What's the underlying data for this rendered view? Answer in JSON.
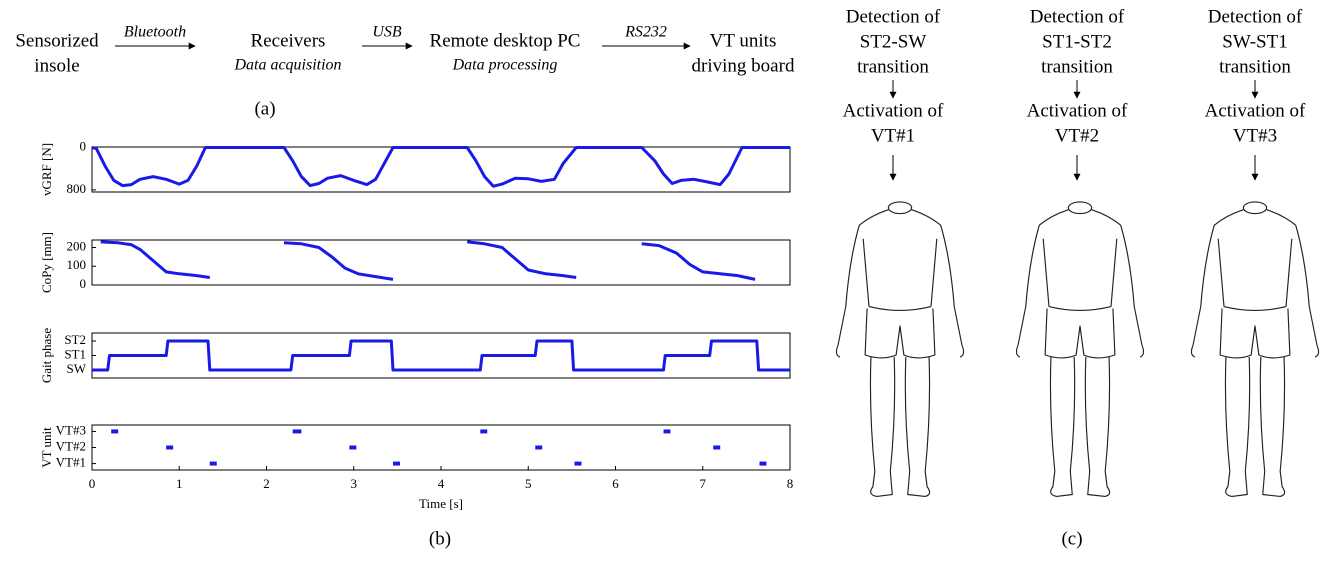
{
  "flow": {
    "nodes": [
      {
        "lines": [
          "Sensorized",
          "insole"
        ]
      },
      {
        "lines": [
          "Receivers"
        ],
        "note": "Data acquisition"
      },
      {
        "lines": [
          "Remote desktop PC"
        ],
        "note": "Data processing"
      },
      {
        "lines": [
          "VT units",
          "driving board"
        ]
      }
    ],
    "edges": [
      "Bluetooth",
      "USB",
      "RS232"
    ],
    "label": "(a)"
  },
  "plots_label": "(b)",
  "chart_data": [
    {
      "type": "line",
      "ylabel": "vGRF [N]",
      "color": "#1a1ae6",
      "xlim": [
        0,
        8
      ],
      "ylim": [
        840,
        -10
      ],
      "yticks": [
        0,
        800
      ],
      "x": [
        0,
        0.05,
        0.15,
        0.25,
        0.35,
        0.45,
        0.55,
        0.7,
        0.85,
        1.0,
        1.1,
        1.2,
        1.3,
        2.2,
        2.3,
        2.4,
        2.5,
        2.6,
        2.7,
        2.85,
        3.0,
        3.15,
        3.25,
        3.35,
        3.45,
        4.3,
        4.4,
        4.5,
        4.6,
        4.7,
        4.85,
        5.0,
        5.15,
        5.3,
        5.4,
        5.55,
        6.3,
        6.45,
        6.55,
        6.65,
        6.75,
        6.9,
        7.05,
        7.2,
        7.3,
        7.45,
        8
      ],
      "values": [
        0,
        20,
        350,
        620,
        720,
        700,
        600,
        550,
        600,
        690,
        620,
        350,
        0,
        0,
        250,
        550,
        720,
        680,
        580,
        530,
        620,
        700,
        600,
        300,
        0,
        0,
        250,
        550,
        730,
        690,
        580,
        590,
        640,
        600,
        300,
        0,
        0,
        250,
        500,
        680,
        620,
        600,
        650,
        700,
        500,
        0,
        0
      ]
    },
    {
      "type": "line",
      "ylabel": "CoPy [mm]",
      "color": "#1a1ae6",
      "xlim": [
        0,
        8
      ],
      "ylim": [
        0,
        240
      ],
      "yticks": [
        0,
        100,
        200
      ],
      "x": [
        0.1,
        0.3,
        0.45,
        0.55,
        0.7,
        0.85,
        1.0,
        1.2,
        1.35,
        1.8,
        2.2,
        2.4,
        2.6,
        2.75,
        2.9,
        3.05,
        3.25,
        3.45,
        3.9,
        4.3,
        4.5,
        4.7,
        4.85,
        5.0,
        5.2,
        5.4,
        5.55,
        5.9,
        6.3,
        6.5,
        6.7,
        6.85,
        7.0,
        7.2,
        7.4,
        7.6
      ],
      "values": [
        230,
        225,
        215,
        190,
        130,
        70,
        60,
        50,
        40,
        null,
        225,
        220,
        200,
        150,
        90,
        60,
        45,
        30,
        null,
        230,
        220,
        200,
        140,
        80,
        60,
        50,
        40,
        null,
        220,
        210,
        170,
        110,
        70,
        60,
        50,
        30
      ]
    },
    {
      "type": "line",
      "ylabel": "Gait phase",
      "color": "#1a1ae6",
      "xlim": [
        0,
        8
      ],
      "ylim": [
        -0.55,
        2.55
      ],
      "yticks": [
        {
          "value": 0,
          "label": "SW"
        },
        {
          "value": 1,
          "label": "ST1"
        },
        {
          "value": 2,
          "label": "ST2"
        }
      ],
      "x": [
        0,
        0.18,
        0.2,
        0.85,
        0.87,
        1.33,
        1.35,
        2.28,
        2.3,
        2.95,
        2.97,
        3.43,
        3.45,
        4.45,
        4.47,
        5.08,
        5.1,
        5.5,
        5.52,
        6.55,
        6.57,
        7.08,
        7.1,
        7.62,
        7.64,
        8
      ],
      "values": [
        0,
        0,
        1,
        1,
        2,
        2,
        0,
        0,
        1,
        1,
        2,
        2,
        0,
        0,
        1,
        1,
        2,
        2,
        0,
        0,
        1,
        1,
        2,
        2,
        0,
        0
      ]
    },
    {
      "type": "segments",
      "ylabel": "VT unit",
      "color": "#1a1ae6",
      "xlim": [
        0,
        8
      ],
      "ylim": [
        0.6,
        3.4
      ],
      "yticks": [
        {
          "value": 1,
          "label": "VT#1"
        },
        {
          "value": 2,
          "label": "VT#2"
        },
        {
          "value": 3,
          "label": "VT#3"
        }
      ],
      "xticks": [
        0,
        1,
        2,
        3,
        4,
        5,
        6,
        7,
        8
      ],
      "xlabel": "Time [s]",
      "x_start": [
        0.22,
        0.85,
        1.35,
        2.3,
        2.95,
        3.45,
        4.45,
        5.08,
        5.53,
        6.55,
        7.12,
        7.65
      ],
      "x_end": [
        0.3,
        0.93,
        1.43,
        2.4,
        3.03,
        3.53,
        4.53,
        5.16,
        5.61,
        6.63,
        7.2,
        7.73
      ],
      "values": [
        3,
        2,
        1,
        3,
        2,
        1,
        3,
        2,
        1,
        3,
        2,
        1
      ]
    }
  ],
  "stages": {
    "columns": [
      {
        "detection": [
          "Detection of",
          "ST2-SW",
          "transition"
        ],
        "activation": [
          "Activation of",
          "VT#1"
        ]
      },
      {
        "detection": [
          "Detection of",
          "ST1-ST2",
          "transition"
        ],
        "activation": [
          "Activation of",
          "VT#2"
        ]
      },
      {
        "detection": [
          "Detection of",
          "SW-ST1",
          "transition"
        ],
        "activation": [
          "Activation of",
          "VT#3"
        ]
      }
    ],
    "label": "(c)"
  }
}
